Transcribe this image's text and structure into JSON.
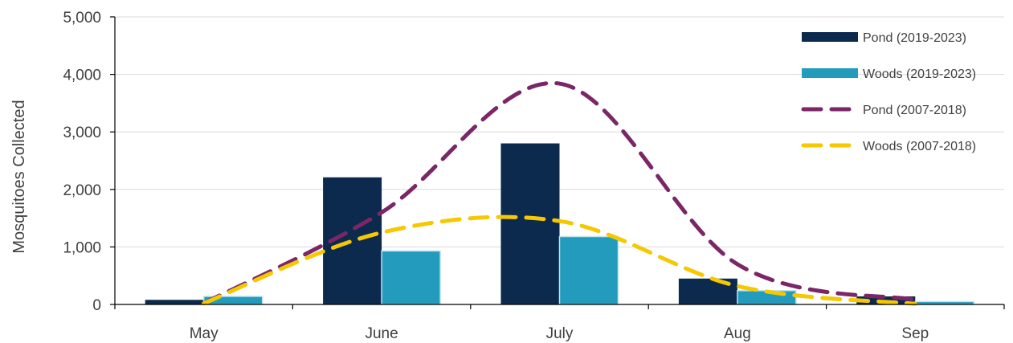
{
  "chart_data": {
    "type": "bar",
    "title": "",
    "xlabel": "",
    "ylabel": "Mosquitoes Collected",
    "categories": [
      "May",
      "June",
      "July",
      "Aug",
      "Sep"
    ],
    "ylim": [
      0,
      5000
    ],
    "yticks": [
      0,
      1000,
      2000,
      3000,
      4000,
      5000
    ],
    "ytick_labels": [
      "0",
      "1,000",
      "2,000",
      "3,000",
      "4,000",
      "5,000"
    ],
    "grid": true,
    "legend_position": "top-right",
    "series": [
      {
        "name": "Pond (2019-2023)",
        "kind": "bar",
        "color": "#0b2a4e",
        "values": [
          80,
          2210,
          2800,
          450,
          140
        ]
      },
      {
        "name": "Woods (2019-2023)",
        "kind": "bar",
        "color": "#239bbd",
        "values": [
          140,
          930,
          1180,
          240,
          50
        ]
      },
      {
        "name": "Pond (2007-2018)",
        "kind": "line",
        "style": "dashed-smooth",
        "color": "#7a2667",
        "values": [
          20,
          1600,
          3840,
          700,
          80
        ]
      },
      {
        "name": "Woods (2007-2018)",
        "kind": "line",
        "style": "dashed-smooth",
        "color": "#f5c800",
        "values": [
          20,
          1250,
          1450,
          320,
          10
        ]
      }
    ]
  }
}
